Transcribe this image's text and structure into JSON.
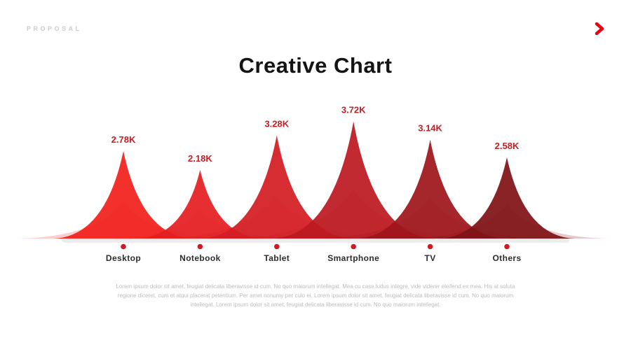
{
  "header": {
    "eyebrow": "PROPOSAL",
    "title": "Creative Chart"
  },
  "nav": {
    "next_icon": "chevron-right-icon",
    "accent_color": "#e40613"
  },
  "chart_data": {
    "type": "area",
    "variant": "triangle-peaks",
    "title": "Creative Chart",
    "categories": [
      "Desktop",
      "Notebook",
      "Tablet",
      "Smartphone",
      "TV",
      "Others"
    ],
    "values": [
      2780,
      2180,
      3280,
      3720,
      3140,
      2580
    ],
    "value_labels": [
      "2.78K",
      "2.18K",
      "3.28K",
      "3.72K",
      "3.14K",
      "2.58K"
    ],
    "colors": [
      "#f1201c",
      "#e41f21",
      "#d31d24",
      "#bb1a20",
      "#9e161b",
      "#801216"
    ],
    "value_label_color": "#c11f24",
    "dot_color": "#d11a21",
    "baseline_color": "#ededed",
    "ylim": [
      0,
      4000
    ],
    "legend": "none",
    "grid": false
  },
  "body_text": "Lorem ipsum dolor sit amet, feugiat delicata liberavisse id cum. No quo maiorum intellegat. Mea cu case ludus integre, vide viderer eleifend ex mea. His at soluta regione diceret, cum et atqui placerat petentium. Per amet nonumy per culo ei. Lorem ipsum dolor sit amet, feugiat delicata liberavisse id cum. No quo maiorum intellegat. Lorem ipsum dolor sit amet, feugiat delicata liberavisse id cum. No quo maiorum intellegat."
}
